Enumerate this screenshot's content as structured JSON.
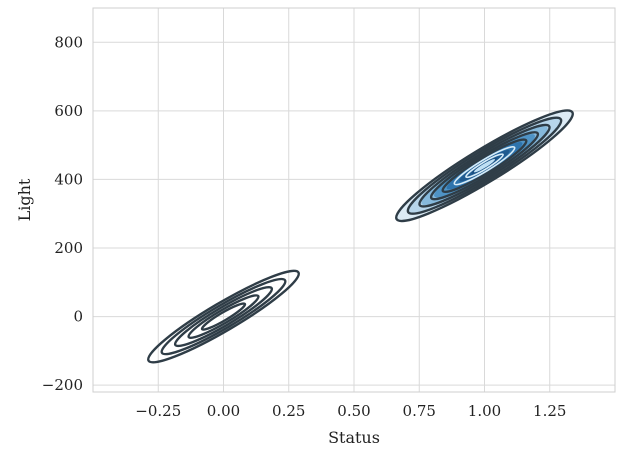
{
  "chart_data": {
    "type": "contour",
    "title": "",
    "xlabel": "Status",
    "ylabel": "Light",
    "xlim": [
      -0.5,
      1.5
    ],
    "ylim": [
      -220,
      900
    ],
    "x_ticks": [
      -0.25,
      0.0,
      0.25,
      0.5,
      0.75,
      1.0,
      1.25
    ],
    "x_tick_labels": [
      "−0.25",
      "0.00",
      "0.25",
      "0.50",
      "0.75",
      "1.00",
      "1.25"
    ],
    "y_ticks": [
      -200,
      0,
      200,
      400,
      600,
      800
    ],
    "y_tick_labels": [
      "−200",
      "0",
      "200",
      "400",
      "600",
      "800"
    ],
    "grid": true,
    "clusters": [
      {
        "center": {
          "x": 0.0,
          "y": 0
        },
        "outer_extent": {
          "x": [
            -0.3,
            0.28
          ],
          "y": [
            -130,
            130
          ]
        },
        "levels": 5,
        "filled": false
      },
      {
        "center": {
          "x": 1.0,
          "y": 440
        },
        "outer_extent": {
          "x": [
            0.66,
            1.34
          ],
          "y": [
            280,
            595
          ]
        },
        "levels": 7,
        "filled": true
      }
    ],
    "colors": {
      "contour_line": "#2f3d47",
      "fill_dark": "#1f5a8f",
      "fill_light": "#5aa7d8",
      "grid": "#d9d9d9",
      "frame": "#cfcfcf"
    }
  }
}
